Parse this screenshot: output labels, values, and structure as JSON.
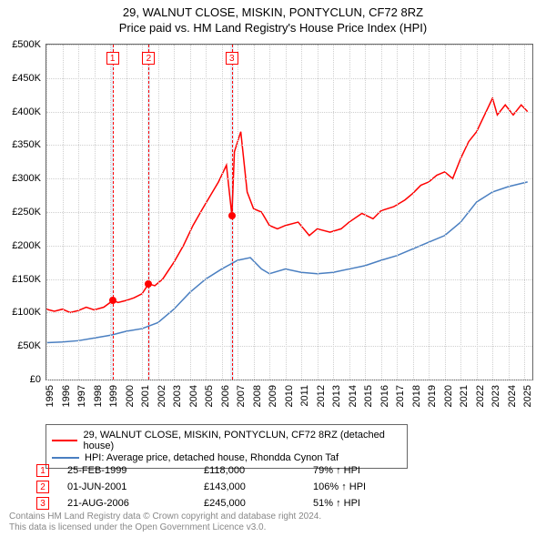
{
  "title_line1": "29, WALNUT CLOSE, MISKIN, PONTYCLUN, CF72 8RZ",
  "title_line2": "Price paid vs. HM Land Registry's House Price Index (HPI)",
  "chart": {
    "type": "line",
    "x_min": 1995,
    "x_max": 2025.5,
    "y_min": 0,
    "y_max": 500000,
    "y_ticks": [
      0,
      50000,
      100000,
      150000,
      200000,
      250000,
      300000,
      350000,
      400000,
      450000,
      500000
    ],
    "y_tick_labels": [
      "£0",
      "£50K",
      "£100K",
      "£150K",
      "£200K",
      "£250K",
      "£300K",
      "£350K",
      "£400K",
      "£450K",
      "£500K"
    ],
    "x_ticks": [
      1995,
      1996,
      1997,
      1998,
      1999,
      2000,
      2001,
      2002,
      2003,
      2004,
      2005,
      2006,
      2007,
      2008,
      2009,
      2010,
      2011,
      2012,
      2013,
      2014,
      2015,
      2016,
      2017,
      2018,
      2019,
      2020,
      2021,
      2022,
      2023,
      2024,
      2025
    ],
    "colors": {
      "price": "#ff0000",
      "hpi": "#4a7fc1",
      "grid": "#cfcfcf",
      "axis": "#666666",
      "band": "#e6eef7",
      "bg": "#ffffff"
    },
    "line_width": 1.5,
    "bands": [
      {
        "from": 1999.05,
        "to": 1999.25
      },
      {
        "from": 2001.32,
        "to": 2001.52
      },
      {
        "from": 2006.54,
        "to": 2006.74
      }
    ],
    "vdash": [
      1999.15,
      2001.42,
      2006.64
    ],
    "marker_boxes": [
      {
        "x": 1999.15,
        "label": "1"
      },
      {
        "x": 2001.42,
        "label": "2"
      },
      {
        "x": 2006.64,
        "label": "3"
      }
    ],
    "sale_points": [
      {
        "x": 1999.15,
        "y": 118000
      },
      {
        "x": 2001.42,
        "y": 143000
      },
      {
        "x": 2006.64,
        "y": 245000
      }
    ],
    "series_price": [
      {
        "x": 1995.0,
        "y": 105000
      },
      {
        "x": 1995.5,
        "y": 102000
      },
      {
        "x": 1996.0,
        "y": 105000
      },
      {
        "x": 1996.5,
        "y": 100000
      },
      {
        "x": 1997.0,
        "y": 103000
      },
      {
        "x": 1997.5,
        "y": 108000
      },
      {
        "x": 1998.0,
        "y": 104000
      },
      {
        "x": 1998.6,
        "y": 108000
      },
      {
        "x": 1999.0,
        "y": 115000
      },
      {
        "x": 1999.15,
        "y": 118000
      },
      {
        "x": 1999.5,
        "y": 115000
      },
      {
        "x": 2000.0,
        "y": 118000
      },
      {
        "x": 2000.5,
        "y": 122000
      },
      {
        "x": 2001.0,
        "y": 128000
      },
      {
        "x": 2001.42,
        "y": 143000
      },
      {
        "x": 2001.8,
        "y": 140000
      },
      {
        "x": 2002.3,
        "y": 150000
      },
      {
        "x": 2003.0,
        "y": 175000
      },
      {
        "x": 2003.6,
        "y": 200000
      },
      {
        "x": 2004.2,
        "y": 230000
      },
      {
        "x": 2004.8,
        "y": 255000
      },
      {
        "x": 2005.3,
        "y": 275000
      },
      {
        "x": 2005.8,
        "y": 295000
      },
      {
        "x": 2006.3,
        "y": 320000
      },
      {
        "x": 2006.64,
        "y": 245000
      },
      {
        "x": 2006.8,
        "y": 340000
      },
      {
        "x": 2007.2,
        "y": 370000
      },
      {
        "x": 2007.6,
        "y": 280000
      },
      {
        "x": 2008.0,
        "y": 255000
      },
      {
        "x": 2008.5,
        "y": 250000
      },
      {
        "x": 2009.0,
        "y": 230000
      },
      {
        "x": 2009.5,
        "y": 225000
      },
      {
        "x": 2010.0,
        "y": 230000
      },
      {
        "x": 2010.8,
        "y": 235000
      },
      {
        "x": 2011.5,
        "y": 215000
      },
      {
        "x": 2012.0,
        "y": 225000
      },
      {
        "x": 2012.8,
        "y": 220000
      },
      {
        "x": 2013.5,
        "y": 225000
      },
      {
        "x": 2014.0,
        "y": 235000
      },
      {
        "x": 2014.8,
        "y": 248000
      },
      {
        "x": 2015.5,
        "y": 240000
      },
      {
        "x": 2016.0,
        "y": 252000
      },
      {
        "x": 2016.8,
        "y": 258000
      },
      {
        "x": 2017.5,
        "y": 268000
      },
      {
        "x": 2018.0,
        "y": 278000
      },
      {
        "x": 2018.5,
        "y": 290000
      },
      {
        "x": 2019.0,
        "y": 295000
      },
      {
        "x": 2019.5,
        "y": 305000
      },
      {
        "x": 2020.0,
        "y": 310000
      },
      {
        "x": 2020.5,
        "y": 300000
      },
      {
        "x": 2021.0,
        "y": 330000
      },
      {
        "x": 2021.5,
        "y": 355000
      },
      {
        "x": 2022.0,
        "y": 370000
      },
      {
        "x": 2022.5,
        "y": 395000
      },
      {
        "x": 2023.0,
        "y": 420000
      },
      {
        "x": 2023.3,
        "y": 395000
      },
      {
        "x": 2023.8,
        "y": 410000
      },
      {
        "x": 2024.3,
        "y": 395000
      },
      {
        "x": 2024.8,
        "y": 410000
      },
      {
        "x": 2025.2,
        "y": 400000
      }
    ],
    "series_hpi": [
      {
        "x": 1995.0,
        "y": 55000
      },
      {
        "x": 1996.0,
        "y": 56000
      },
      {
        "x": 1997.0,
        "y": 58000
      },
      {
        "x": 1998.0,
        "y": 62000
      },
      {
        "x": 1999.0,
        "y": 66000
      },
      {
        "x": 2000.0,
        "y": 72000
      },
      {
        "x": 2001.0,
        "y": 76000
      },
      {
        "x": 2002.0,
        "y": 85000
      },
      {
        "x": 2003.0,
        "y": 105000
      },
      {
        "x": 2004.0,
        "y": 130000
      },
      {
        "x": 2005.0,
        "y": 150000
      },
      {
        "x": 2006.0,
        "y": 165000
      },
      {
        "x": 2007.0,
        "y": 178000
      },
      {
        "x": 2007.8,
        "y": 182000
      },
      {
        "x": 2008.5,
        "y": 165000
      },
      {
        "x": 2009.0,
        "y": 158000
      },
      {
        "x": 2010.0,
        "y": 165000
      },
      {
        "x": 2011.0,
        "y": 160000
      },
      {
        "x": 2012.0,
        "y": 158000
      },
      {
        "x": 2013.0,
        "y": 160000
      },
      {
        "x": 2014.0,
        "y": 165000
      },
      {
        "x": 2015.0,
        "y": 170000
      },
      {
        "x": 2016.0,
        "y": 178000
      },
      {
        "x": 2017.0,
        "y": 185000
      },
      {
        "x": 2018.0,
        "y": 195000
      },
      {
        "x": 2019.0,
        "y": 205000
      },
      {
        "x": 2020.0,
        "y": 215000
      },
      {
        "x": 2021.0,
        "y": 235000
      },
      {
        "x": 2022.0,
        "y": 265000
      },
      {
        "x": 2023.0,
        "y": 280000
      },
      {
        "x": 2024.0,
        "y": 288000
      },
      {
        "x": 2025.2,
        "y": 295000
      }
    ]
  },
  "legend": {
    "row1": {
      "color": "#ff0000",
      "text": "29, WALNUT CLOSE, MISKIN, PONTYCLUN, CF72 8RZ (detached house)"
    },
    "row2": {
      "color": "#4a7fc1",
      "text": "HPI: Average price, detached house, Rhondda Cynon Taf"
    }
  },
  "markers_table": [
    {
      "n": "1",
      "date": "25-FEB-1999",
      "price": "£118,000",
      "pct": "79% ↑ HPI"
    },
    {
      "n": "2",
      "date": "01-JUN-2001",
      "price": "£143,000",
      "pct": "106% ↑ HPI"
    },
    {
      "n": "3",
      "date": "21-AUG-2006",
      "price": "£245,000",
      "pct": "51% ↑ HPI"
    }
  ],
  "footer_line1": "Contains HM Land Registry data © Crown copyright and database right 2024.",
  "footer_line2": "This data is licensed under the Open Government Licence v3.0."
}
